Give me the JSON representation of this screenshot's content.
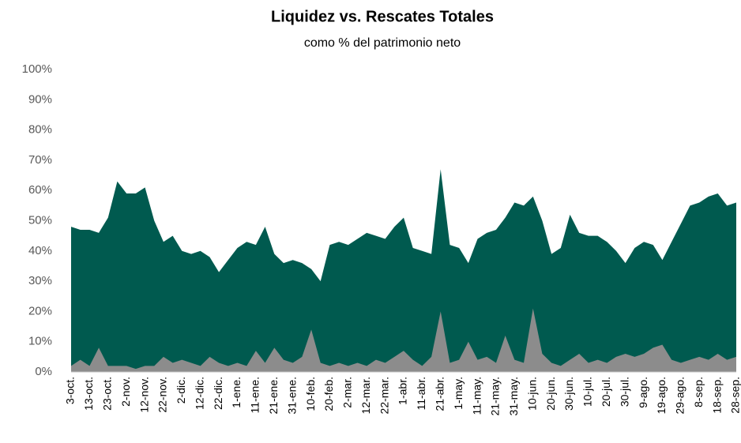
{
  "chart_data": {
    "type": "area",
    "title": "Liquidez vs. Rescates Totales",
    "subtitle": "como % del patrimonio neto",
    "categories": [
      "3-oct.",
      null,
      "13-oct.",
      null,
      "23-oct.",
      null,
      "2-nov.",
      null,
      "12-nov.",
      null,
      "22-nov.",
      null,
      "2-dic.",
      null,
      "12-dic.",
      null,
      "22-dic.",
      null,
      "1-ene.",
      null,
      "11-ene.",
      null,
      "21-ene.",
      null,
      "31-ene.",
      null,
      "10-feb.",
      null,
      "20-feb.",
      null,
      "2-mar.",
      null,
      "12-mar.",
      null,
      "22-mar.",
      null,
      "1-abr.",
      null,
      "11-abr.",
      null,
      "21-abr.",
      null,
      "1-may.",
      null,
      "11-may.",
      null,
      "21-may.",
      null,
      "31-may.",
      null,
      "10-jun.",
      null,
      "20-jun.",
      null,
      "30-jun.",
      null,
      "10-jul.",
      null,
      "20-jul.",
      null,
      "30-jul.",
      null,
      "9-ago.",
      null,
      "19-ago.",
      null,
      "29-ago.",
      null,
      "8-sep.",
      null,
      "18-sep.",
      null,
      "28-sep."
    ],
    "series": [
      {
        "color": "#005a4f",
        "values": [
          48,
          47,
          47,
          46,
          51,
          63,
          59,
          59,
          61,
          50,
          43,
          45,
          40,
          39,
          40,
          38,
          33,
          37,
          41,
          43,
          42,
          48,
          39,
          36,
          37,
          36,
          34,
          30,
          42,
          43,
          42,
          44,
          46,
          45,
          44,
          48,
          51,
          41,
          40,
          39,
          67,
          42,
          41,
          36,
          44,
          46,
          47,
          51,
          56,
          55,
          58,
          50,
          39,
          41,
          52,
          46,
          45,
          45,
          43,
          40,
          36,
          41,
          43,
          42,
          37,
          43,
          49,
          55,
          56,
          58,
          59,
          55,
          56
        ]
      },
      {
        "color": "#8c8c8c",
        "values": [
          2,
          4,
          2,
          8,
          2,
          2,
          2,
          1,
          2,
          2,
          5,
          3,
          4,
          3,
          2,
          5,
          3,
          2,
          3,
          2,
          7,
          3,
          8,
          4,
          3,
          5,
          14,
          3,
          2,
          3,
          2,
          3,
          2,
          4,
          3,
          5,
          7,
          4,
          2,
          5,
          20,
          3,
          4,
          10,
          4,
          5,
          3,
          12,
          4,
          3,
          21,
          6,
          3,
          2,
          4,
          6,
          3,
          4,
          3,
          5,
          6,
          5,
          6,
          8,
          9,
          4,
          3,
          4,
          5,
          4,
          6,
          4,
          5
        ]
      }
    ],
    "ylim": [
      0,
      100
    ],
    "yticks": [
      {
        "value": 0,
        "label": "0%"
      },
      {
        "value": 10,
        "label": "10%"
      },
      {
        "value": 20,
        "label": "20%"
      },
      {
        "value": 30,
        "label": "30%"
      },
      {
        "value": 40,
        "label": "40%"
      },
      {
        "value": 50,
        "label": "50%"
      },
      {
        "value": 60,
        "label": "60%"
      },
      {
        "value": 70,
        "label": "70%"
      },
      {
        "value": 80,
        "label": "80%"
      },
      {
        "value": 90,
        "label": "90%"
      },
      {
        "value": 100,
        "label": "100%"
      }
    ]
  }
}
